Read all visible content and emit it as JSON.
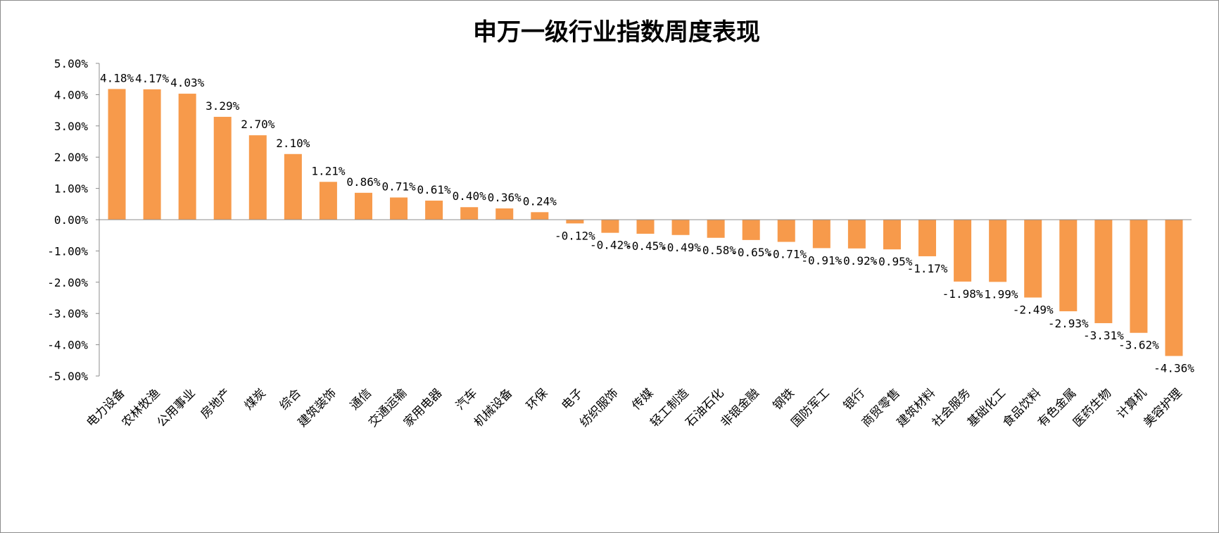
{
  "chart_data": {
    "type": "bar",
    "title": "申万一级行业指数周度表现",
    "xlabel": "",
    "ylabel": "",
    "ylim": [
      -5,
      5
    ],
    "yticks": [
      5,
      4,
      3,
      2,
      1,
      0,
      -1,
      -2,
      -3,
      -4,
      -5
    ],
    "ytick_labels": [
      "5.00%",
      "4.00%",
      "3.00%",
      "2.00%",
      "1.00%",
      "0.00%",
      "-1.00%",
      "-2.00%",
      "-3.00%",
      "-4.00%",
      "-5.00%"
    ],
    "grid": false,
    "legend": "none",
    "bar_color": "#F79A4B",
    "categories": [
      "电力设备",
      "农林牧渔",
      "公用事业",
      "房地产",
      "煤炭",
      "综合",
      "建筑装饰",
      "通信",
      "交通运输",
      "家用电器",
      "汽车",
      "机械设备",
      "环保",
      "电子",
      "纺织服饰",
      "传媒",
      "轻工制造",
      "石油石化",
      "非银金融",
      "钢铁",
      "国防军工",
      "银行",
      "商贸零售",
      "建筑材料",
      "社会服务",
      "基础化工",
      "食品饮料",
      "有色金属",
      "医药生物",
      "计算机",
      "美容护理"
    ],
    "values": [
      4.18,
      4.17,
      4.03,
      3.29,
      2.7,
      2.1,
      1.21,
      0.86,
      0.71,
      0.61,
      0.4,
      0.36,
      0.24,
      -0.12,
      -0.42,
      -0.45,
      -0.49,
      -0.58,
      -0.65,
      -0.71,
      -0.91,
      -0.92,
      -0.95,
      -1.17,
      -1.98,
      -1.99,
      -2.49,
      -2.93,
      -3.31,
      -3.62,
      -4.36
    ],
    "data_labels": [
      "4.18%",
      "4.17%",
      "4.03%",
      "3.29%",
      "2.70%",
      "2.10%",
      "1.21%",
      "0.86%",
      "0.71%",
      "0.61%",
      "0.40%",
      "0.36%",
      "0.24%",
      "-0.12%",
      "-0.42%",
      "-0.45%",
      "-0.49%",
      "-0.58%",
      "-0.65%",
      "-0.71%",
      "-0.91%",
      "-0.92%",
      "-0.95%",
      "-1.17%",
      "-1.98%",
      "-1.99%",
      "-2.49%",
      "-2.93%",
      "-3.31%",
      "-3.62%",
      "-4.36%"
    ]
  }
}
